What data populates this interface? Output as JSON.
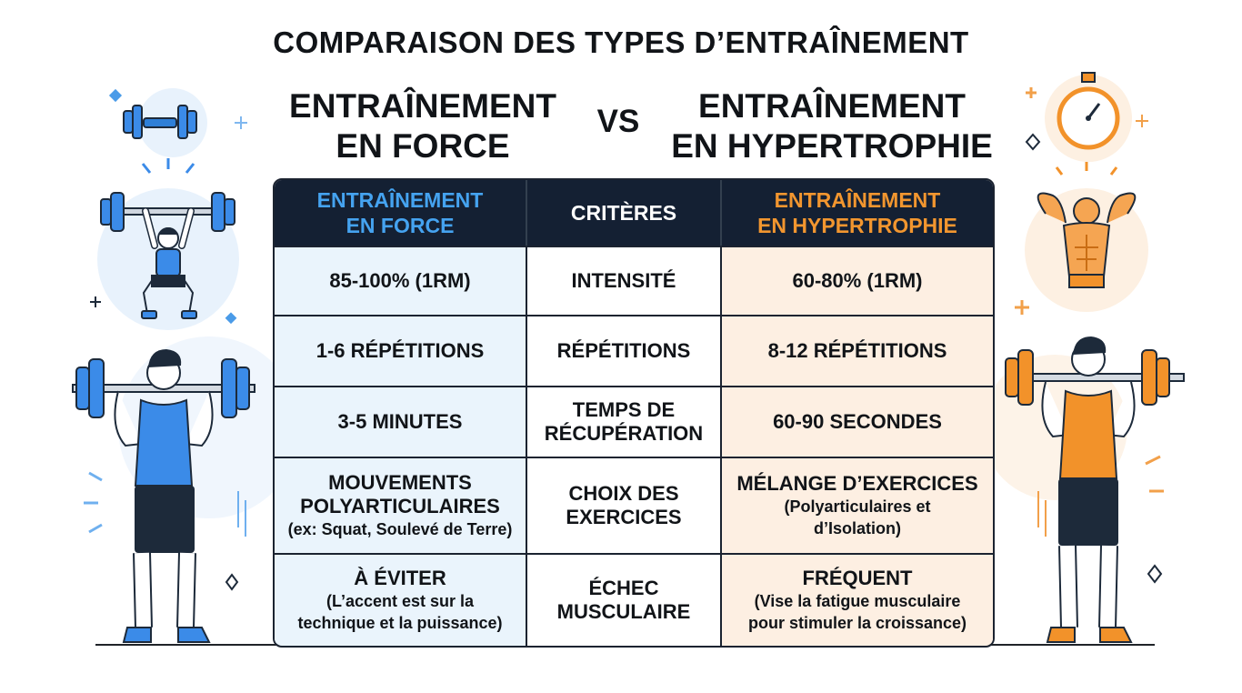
{
  "title": "COMPARAISON DES TYPES D’ENTRAÎNEMENT",
  "left_heading": [
    "ENTRAÎNEMENT",
    "EN FORCE"
  ],
  "vs": "VS",
  "right_heading": [
    "ENTRAÎNEMENT",
    "EN HYPERTROPHIE"
  ],
  "table": {
    "headers": {
      "force": [
        "ENTRAÎNEMENT",
        "EN FORCE"
      ],
      "criteria": "CRITÈRES",
      "hypertrophy": [
        "ENTRAÎNEMENT",
        "EN HYPERTROPHIE"
      ]
    },
    "rows": [
      {
        "force": [
          "85-100% (1RM)"
        ],
        "force_note": [],
        "criteria": [
          "INTENSITÉ"
        ],
        "hypertrophy": [
          "60-80% (1RM)"
        ],
        "hypertrophy_note": []
      },
      {
        "force": [
          "1-6 RÉPÉTITIONS"
        ],
        "force_note": [],
        "criteria": [
          "RÉPÉTITIONS"
        ],
        "hypertrophy": [
          "8-12 RÉPÉTITIONS"
        ],
        "hypertrophy_note": []
      },
      {
        "force": [
          "3-5 MINUTES"
        ],
        "force_note": [],
        "criteria": [
          "TEMPS DE",
          "RÉCUPÉRATION"
        ],
        "hypertrophy": [
          "60-90 SECONDES"
        ],
        "hypertrophy_note": []
      },
      {
        "force": [
          "MOUVEMENTS",
          "POLYARTICULAIRES"
        ],
        "force_note": [
          "(ex: Squat, Soulevé de Terre)"
        ],
        "criteria": [
          "CHOIX DES",
          "EXERCICES"
        ],
        "hypertrophy": [
          "MÉLANGE D’EXERCICES"
        ],
        "hypertrophy_note": [
          "(Polyarticulaires et",
          "d’Isolation)"
        ]
      },
      {
        "force": [
          "À ÉVITER"
        ],
        "force_note": [
          "(L’accent est sur la",
          "technique et la puissance)"
        ],
        "criteria": [
          "ÉCHEC",
          "MUSCULAIRE"
        ],
        "hypertrophy": [
          "FRÉQUENT"
        ],
        "hypertrophy_note": [
          "(Vise la fatigue musculaire",
          "pour stimuler la croissance)"
        ]
      }
    ]
  },
  "colors": {
    "force_accent": "#3b82e0",
    "hypertrophy_accent": "#f2922a",
    "header_bg": "#142033",
    "force_cell_bg": "#eaf4fc",
    "hypertrophy_cell_bg": "#fdefe2"
  },
  "icons": [
    "dumbbell-icon",
    "weightlifter-overhead-icon",
    "athlete-blue-barbell-icon",
    "stopwatch-icon",
    "flexing-bodybuilder-icon",
    "athlete-orange-barbell-icon",
    "sparkle-icon"
  ]
}
